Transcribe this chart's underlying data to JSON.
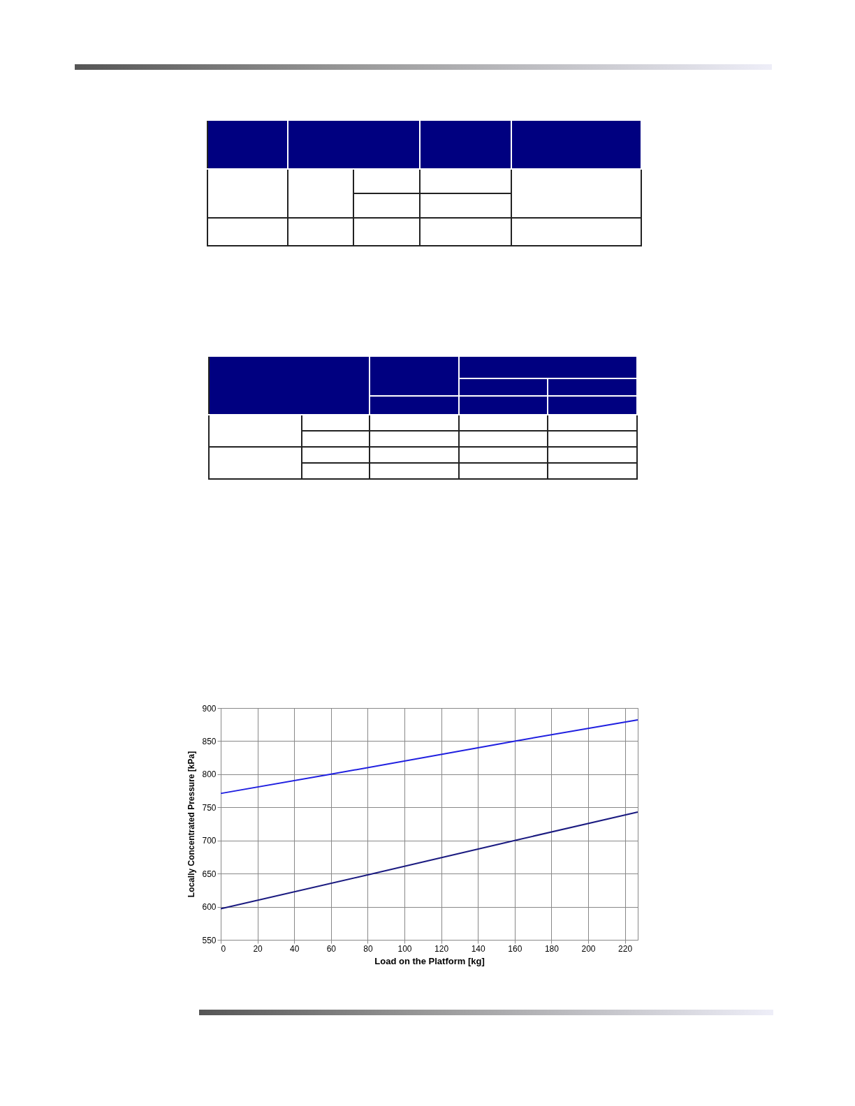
{
  "chart_data": {
    "type": "line",
    "xlabel": "Load on the Platform [kg]",
    "ylabel": "Locally Concentrated Pressure [kPa]",
    "xlim": [
      0,
      227
    ],
    "xticks": [
      0,
      20,
      40,
      60,
      80,
      100,
      120,
      140,
      160,
      180,
      200,
      220
    ],
    "ylim": [
      550,
      900
    ],
    "yticks": [
      550,
      600,
      650,
      700,
      750,
      800,
      850,
      900
    ],
    "grid": true,
    "legend": false,
    "line_style": "solid",
    "marker": "none",
    "series": [
      {
        "color": "#1a1a80",
        "x": [
          0,
          80,
          160,
          227
        ],
        "values": [
          597,
          648,
          700,
          743
        ]
      },
      {
        "color": "#1f1fe0",
        "x": [
          0,
          60,
          160,
          227
        ],
        "values": [
          771,
          800,
          850,
          882
        ]
      }
    ]
  }
}
